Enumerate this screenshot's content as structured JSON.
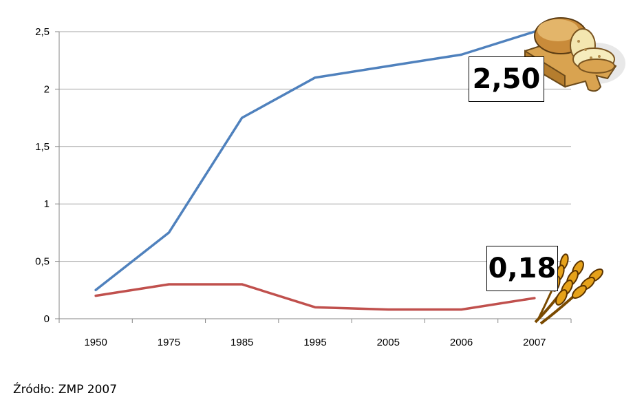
{
  "chart_data": {
    "type": "line",
    "categories": [
      "1950",
      "1975",
      "1985",
      "1995",
      "2005",
      "2006",
      "2007"
    ],
    "y_tick_labels": [
      "0",
      "0,5",
      "1",
      "1,5",
      "2",
      "2,5"
    ],
    "y_ticks": [
      0,
      0.5,
      1,
      1.5,
      2,
      2.5
    ],
    "ylim": [
      0,
      2.5
    ],
    "grid": true,
    "legend": "none",
    "series": [
      {
        "values": [
          0.25,
          0.75,
          1.75,
          2.1,
          2.2,
          2.3,
          2.5
        ],
        "color": "#4F81BD"
      },
      {
        "values": [
          0.2,
          0.3,
          0.3,
          0.1,
          0.08,
          0.08,
          0.18
        ],
        "color": "#C0504D"
      }
    ],
    "annotations": [
      {
        "text": "2,50",
        "series": 0,
        "icon": "bread-icon"
      },
      {
        "text": "0,18",
        "series": 1,
        "icon": "wheat-icon"
      }
    ]
  },
  "footer": {
    "source": "Źródło: ZMP 2007"
  }
}
